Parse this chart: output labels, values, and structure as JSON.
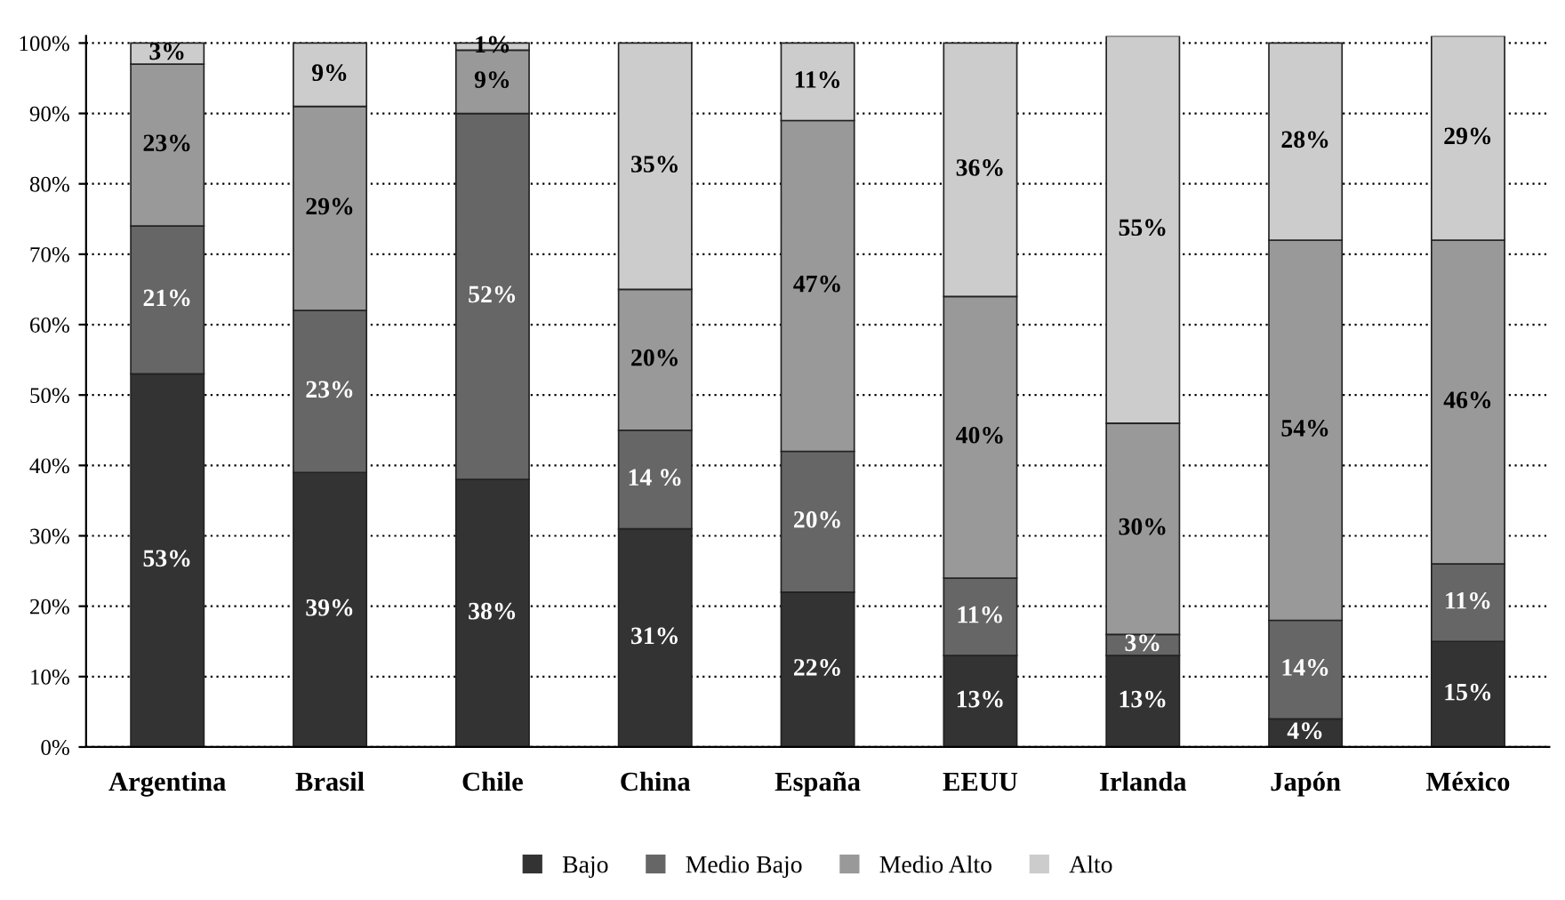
{
  "chart_data": {
    "type": "bar",
    "stacked": true,
    "categories": [
      "Argentina",
      "Brasil",
      "Chile",
      "China",
      "España",
      "EEUU",
      "Irlanda",
      "Japón",
      "México"
    ],
    "series": [
      {
        "name": "Bajo",
        "color": "#333333",
        "values": [
          53,
          39,
          38,
          31,
          22,
          13,
          13,
          4,
          15
        ],
        "value_labels": [
          "53%",
          "39%",
          "38%",
          "31%",
          "22%",
          "13%",
          "13%",
          "4%",
          "15%"
        ]
      },
      {
        "name": "Medio Bajo",
        "color": "#666666",
        "values": [
          21,
          23,
          52,
          14,
          20,
          11,
          3,
          14,
          11
        ],
        "value_labels": [
          "21%",
          "23%",
          "52%",
          "14 %",
          "20%",
          "11%",
          "3%",
          "14%",
          "11%"
        ]
      },
      {
        "name": "Medio Alto",
        "color": "#999999",
        "values": [
          23,
          29,
          9,
          20,
          47,
          40,
          30,
          54,
          46
        ],
        "value_labels": [
          "23%",
          "29%",
          "9%",
          "20%",
          "47%",
          "40%",
          "30%",
          "54%",
          "46%"
        ]
      },
      {
        "name": "Alto",
        "color": "#cccccc",
        "values": [
          3,
          9,
          1,
          35,
          11,
          36,
          55,
          28,
          29
        ],
        "value_labels": [
          "3%",
          "9%",
          "1%",
          "35%",
          "11%",
          "36%",
          "55%",
          "28%",
          "29%"
        ]
      }
    ],
    "ylim": [
      0,
      101
    ],
    "yticks": [
      {
        "value": 0,
        "label": "0%"
      },
      {
        "value": 10,
        "label": "10%"
      },
      {
        "value": 20,
        "label": "20%"
      },
      {
        "value": 30,
        "label": "30%"
      },
      {
        "value": 40,
        "label": "40%"
      },
      {
        "value": 50,
        "label": "50%"
      },
      {
        "value": 60,
        "label": "60%"
      },
      {
        "value": 70,
        "label": "70%"
      },
      {
        "value": 80,
        "label": "80%"
      },
      {
        "value": 90,
        "label": "90%"
      },
      {
        "value": 100,
        "label": "100%"
      }
    ],
    "grid": "y",
    "legend": "bottom"
  }
}
